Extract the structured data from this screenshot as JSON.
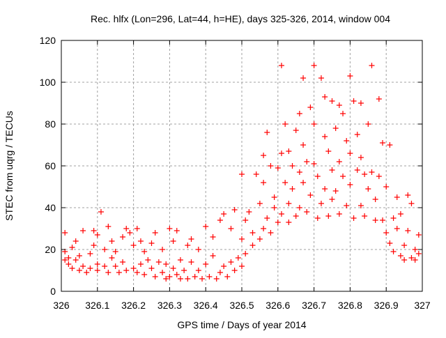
{
  "chart_data": {
    "type": "scatter",
    "title": "Rec. hlfx (Lon=296, Lat=44, h=HE), days 325-326, 2014, window 004",
    "xlabel": "GPS time / Days of year 2014",
    "ylabel": "STEC from uqrg / TECUs",
    "xlim": [
      326,
      327
    ],
    "ylim": [
      0,
      120
    ],
    "grid": true,
    "x_ticks": [
      "326",
      "326.1",
      "326.2",
      "326.3",
      "326.4",
      "326.5",
      "326.6",
      "326.7",
      "326.8",
      "326.9",
      "327"
    ],
    "y_ticks": [
      "0",
      "20",
      "40",
      "60",
      "80",
      "100",
      "120"
    ],
    "series": [
      {
        "name": "STEC",
        "color": "#ff0000",
        "marker": "plus",
        "points": [
          [
            326.01,
            28
          ],
          [
            326.01,
            19
          ],
          [
            326.01,
            15
          ],
          [
            326.02,
            16
          ],
          [
            326.02,
            13
          ],
          [
            326.03,
            21
          ],
          [
            326.03,
            11
          ],
          [
            326.04,
            15
          ],
          [
            326.04,
            24
          ],
          [
            326.05,
            10
          ],
          [
            326.05,
            17
          ],
          [
            326.06,
            29
          ],
          [
            326.06,
            12
          ],
          [
            326.07,
            9
          ],
          [
            326.08,
            18
          ],
          [
            326.08,
            11
          ],
          [
            326.09,
            29
          ],
          [
            326.09,
            22
          ],
          [
            326.1,
            27
          ],
          [
            326.1,
            10
          ],
          [
            326.1,
            13
          ],
          [
            326.11,
            38
          ],
          [
            326.12,
            20
          ],
          [
            326.12,
            12
          ],
          [
            326.13,
            31
          ],
          [
            326.13,
            9
          ],
          [
            326.14,
            16
          ],
          [
            326.14,
            24
          ],
          [
            326.15,
            12
          ],
          [
            326.15,
            19
          ],
          [
            326.16,
            9
          ],
          [
            326.17,
            26
          ],
          [
            326.17,
            14
          ],
          [
            326.18,
            30
          ],
          [
            326.18,
            10
          ],
          [
            326.19,
            28
          ],
          [
            326.2,
            11
          ],
          [
            326.2,
            22
          ],
          [
            326.21,
            30
          ],
          [
            326.21,
            9
          ],
          [
            326.22,
            13
          ],
          [
            326.22,
            24
          ],
          [
            326.23,
            19
          ],
          [
            326.23,
            8
          ],
          [
            326.24,
            15
          ],
          [
            326.25,
            23
          ],
          [
            326.25,
            11
          ],
          [
            326.26,
            7
          ],
          [
            326.26,
            28
          ],
          [
            326.27,
            14
          ],
          [
            326.28,
            9
          ],
          [
            326.28,
            20
          ],
          [
            326.29,
            6
          ],
          [
            326.29,
            13
          ],
          [
            326.3,
            30
          ],
          [
            326.3,
            7
          ],
          [
            326.31,
            24
          ],
          [
            326.31,
            11
          ],
          [
            326.32,
            8
          ],
          [
            326.32,
            29
          ],
          [
            326.33,
            15
          ],
          [
            326.33,
            6
          ],
          [
            326.34,
            10
          ],
          [
            326.35,
            22
          ],
          [
            326.35,
            6
          ],
          [
            326.36,
            14
          ],
          [
            326.36,
            25
          ],
          [
            326.37,
            7
          ],
          [
            326.38,
            10
          ],
          [
            326.38,
            20
          ],
          [
            326.39,
            6
          ],
          [
            326.4,
            13
          ],
          [
            326.4,
            31
          ],
          [
            326.41,
            7
          ],
          [
            326.42,
            17
          ],
          [
            326.42,
            26
          ],
          [
            326.43,
            6
          ],
          [
            326.44,
            9
          ],
          [
            326.44,
            34
          ],
          [
            326.45,
            12
          ],
          [
            326.45,
            37
          ],
          [
            326.46,
            7
          ],
          [
            326.47,
            14
          ],
          [
            326.47,
            30
          ],
          [
            326.48,
            10
          ],
          [
            326.48,
            39
          ],
          [
            326.49,
            16
          ],
          [
            326.5,
            25
          ],
          [
            326.5,
            56
          ],
          [
            326.5,
            12
          ],
          [
            326.51,
            34
          ],
          [
            326.51,
            18
          ],
          [
            326.52,
            38
          ],
          [
            326.53,
            22
          ],
          [
            326.53,
            28
          ],
          [
            326.54,
            56
          ],
          [
            326.55,
            42
          ],
          [
            326.55,
            25
          ],
          [
            326.56,
            30
          ],
          [
            326.56,
            52
          ],
          [
            326.56,
            65
          ],
          [
            326.57,
            76
          ],
          [
            326.57,
            35
          ],
          [
            326.58,
            60
          ],
          [
            326.58,
            28
          ],
          [
            326.59,
            45
          ],
          [
            326.59,
            40
          ],
          [
            326.6,
            59
          ],
          [
            326.6,
            33
          ],
          [
            326.61,
            108
          ],
          [
            326.61,
            37
          ],
          [
            326.61,
            66
          ],
          [
            326.62,
            80
          ],
          [
            326.62,
            52
          ],
          [
            326.63,
            42
          ],
          [
            326.63,
            67
          ],
          [
            326.63,
            33
          ],
          [
            326.64,
            60
          ],
          [
            326.64,
            49
          ],
          [
            326.65,
            77
          ],
          [
            326.65,
            36
          ],
          [
            326.66,
            85
          ],
          [
            326.66,
            57
          ],
          [
            326.66,
            40
          ],
          [
            326.67,
            102
          ],
          [
            326.67,
            70
          ],
          [
            326.67,
            52
          ],
          [
            326.68,
            62
          ],
          [
            326.68,
            38
          ],
          [
            326.69,
            88
          ],
          [
            326.69,
            46
          ],
          [
            326.7,
            108
          ],
          [
            326.7,
            80
          ],
          [
            326.7,
            61
          ],
          [
            326.71,
            35
          ],
          [
            326.71,
            55
          ],
          [
            326.72,
            102
          ],
          [
            326.72,
            42
          ],
          [
            326.73,
            93
          ],
          [
            326.73,
            74
          ],
          [
            326.73,
            49
          ],
          [
            326.74,
            67
          ],
          [
            326.74,
            36
          ],
          [
            326.75,
            91
          ],
          [
            326.75,
            58
          ],
          [
            326.75,
            44
          ],
          [
            326.76,
            78
          ],
          [
            326.76,
            48
          ],
          [
            326.77,
            89
          ],
          [
            326.77,
            62
          ],
          [
            326.77,
            37
          ],
          [
            326.78,
            55
          ],
          [
            326.78,
            85
          ],
          [
            326.79,
            72
          ],
          [
            326.79,
            41
          ],
          [
            326.8,
            103
          ],
          [
            326.8,
            66
          ],
          [
            326.8,
            51
          ],
          [
            326.81,
            35
          ],
          [
            326.81,
            91
          ],
          [
            326.82,
            58
          ],
          [
            326.82,
            75
          ],
          [
            326.83,
            90
          ],
          [
            326.83,
            64
          ],
          [
            326.83,
            41
          ],
          [
            326.84,
            56
          ],
          [
            326.84,
            36
          ],
          [
            326.85,
            80
          ],
          [
            326.85,
            49
          ],
          [
            326.86,
            108
          ],
          [
            326.86,
            57
          ],
          [
            326.87,
            34
          ],
          [
            326.87,
            44
          ],
          [
            326.88,
            92
          ],
          [
            326.88,
            55
          ],
          [
            326.89,
            71
          ],
          [
            326.89,
            34
          ],
          [
            326.9,
            28
          ],
          [
            326.9,
            50
          ],
          [
            326.91,
            70
          ],
          [
            326.91,
            23
          ],
          [
            326.92,
            35
          ],
          [
            326.92,
            19
          ],
          [
            326.93,
            45
          ],
          [
            326.93,
            30
          ],
          [
            326.94,
            17
          ],
          [
            326.94,
            37
          ],
          [
            326.95,
            22
          ],
          [
            326.95,
            15
          ],
          [
            326.96,
            46
          ],
          [
            326.96,
            29
          ],
          [
            326.97,
            16
          ],
          [
            326.97,
            42
          ],
          [
            326.98,
            20
          ],
          [
            326.98,
            15
          ],
          [
            326.99,
            27
          ],
          [
            326.99,
            18
          ]
        ]
      }
    ]
  }
}
